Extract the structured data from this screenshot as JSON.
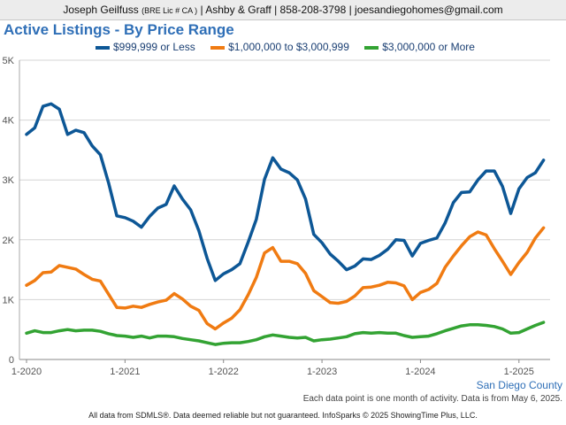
{
  "header": {
    "name": "Joseph Geilfuss",
    "license": "(BRE Lic # CA )",
    "contact": "| Ashby & Graff | 858-208-3798 | joesandiegohomes@gmail.com"
  },
  "region": "San Diego County",
  "note": "Each data point is one month of activity. Data is from May 6, 2025.",
  "footer": "All data from SDMLS®. Data deemed reliable but not guaranteed. InfoSparks © 2025 ShowingTime Plus, LLC.",
  "colors": {
    "low": "#0d5796",
    "mid": "#f07b12",
    "high": "#33a333"
  },
  "chart_data": {
    "type": "line",
    "title": "Active Listings - By Price Range",
    "xlabel": "",
    "ylabel": "",
    "x_start": "2020-01",
    "x_ticks": [
      "1-2020",
      "1-2021",
      "1-2022",
      "1-2023",
      "1-2024",
      "1-2025"
    ],
    "y_ticks": [
      "0",
      "1K",
      "2K",
      "3K",
      "4K",
      "5K"
    ],
    "ylim": [
      0,
      5000
    ],
    "grid": true,
    "legend_position": "top",
    "series": [
      {
        "name": "$999,999 or Less",
        "values": [
          3760,
          3870,
          4230,
          4270,
          4180,
          3760,
          3830,
          3790,
          3570,
          3420,
          2950,
          2400,
          2370,
          2310,
          2210,
          2390,
          2530,
          2590,
          2900,
          2680,
          2500,
          2150,
          1690,
          1320,
          1430,
          1500,
          1600,
          1960,
          2340,
          3010,
          3370,
          3180,
          3120,
          3000,
          2680,
          2090,
          1950,
          1760,
          1640,
          1500,
          1560,
          1680,
          1670,
          1740,
          1840,
          2000,
          1990,
          1730,
          1940,
          1990,
          2030,
          2280,
          2620,
          2790,
          2800,
          3000,
          3150,
          3150,
          2890,
          2440,
          2850,
          3040,
          3120,
          3330
        ]
      },
      {
        "name": "$1,000,000 to $3,000,999",
        "values": [
          1240,
          1320,
          1450,
          1460,
          1570,
          1540,
          1510,
          1420,
          1340,
          1310,
          1090,
          870,
          860,
          890,
          870,
          920,
          960,
          990,
          1100,
          1010,
          890,
          820,
          600,
          510,
          610,
          690,
          830,
          1080,
          1370,
          1780,
          1870,
          1640,
          1640,
          1600,
          1440,
          1150,
          1050,
          950,
          940,
          970,
          1060,
          1200,
          1210,
          1240,
          1290,
          1280,
          1230,
          1000,
          1120,
          1170,
          1270,
          1540,
          1730,
          1900,
          2050,
          2130,
          2080,
          1850,
          1640,
          1420,
          1620,
          1790,
          2030,
          2200
        ]
      },
      {
        "name": "$3,000,000 or More",
        "values": [
          440,
          480,
          450,
          450,
          480,
          500,
          480,
          490,
          490,
          470,
          430,
          400,
          390,
          370,
          390,
          360,
          390,
          390,
          380,
          350,
          330,
          310,
          280,
          250,
          270,
          280,
          280,
          300,
          330,
          380,
          410,
          390,
          370,
          360,
          370,
          310,
          330,
          340,
          360,
          380,
          430,
          450,
          440,
          450,
          440,
          440,
          400,
          370,
          380,
          390,
          430,
          480,
          520,
          560,
          580,
          580,
          570,
          550,
          510,
          440,
          450,
          510,
          570,
          620
        ]
      }
    ]
  }
}
